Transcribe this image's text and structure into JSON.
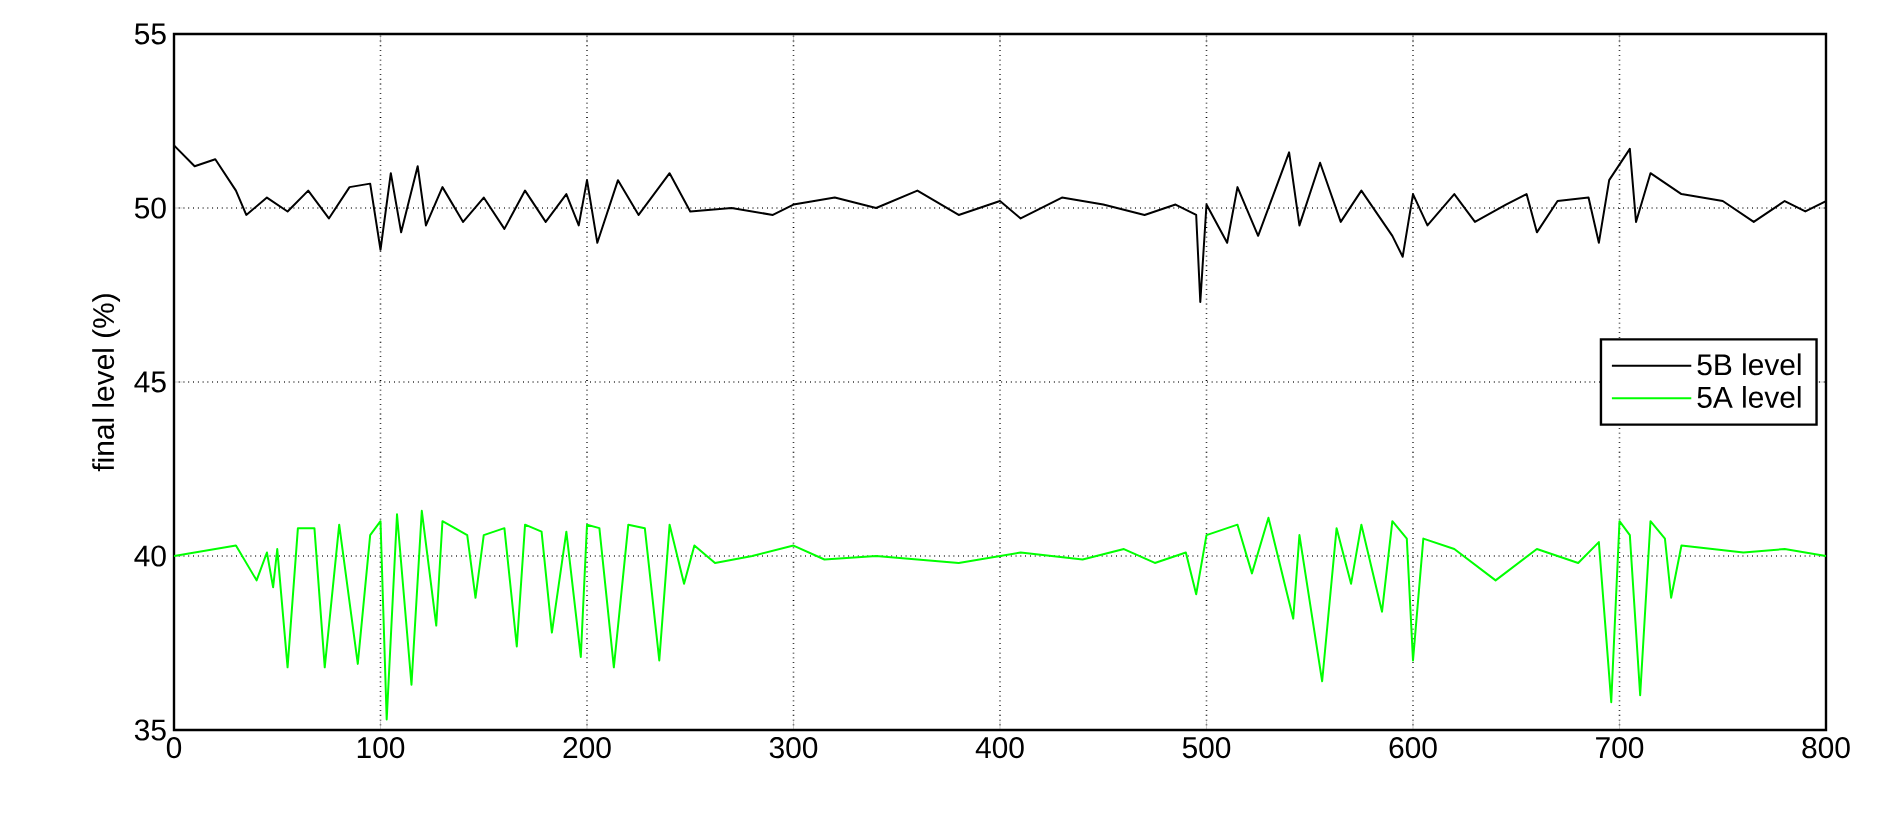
{
  "chart_data": {
    "type": "line",
    "ylabel": "final level (%)",
    "xlim": [
      0,
      800
    ],
    "ylim": [
      35,
      55
    ],
    "xticks": [
      0,
      100,
      200,
      300,
      400,
      500,
      600,
      700,
      800
    ],
    "yticks": [
      35,
      40,
      45,
      50,
      55
    ],
    "grid": true,
    "legend": "right",
    "marker": "none",
    "line_style": "solid",
    "series": [
      {
        "name": "5B level",
        "color": "#000000",
        "x": [
          0,
          10,
          20,
          30,
          35,
          45,
          55,
          65,
          75,
          85,
          95,
          100,
          105,
          110,
          118,
          122,
          130,
          140,
          150,
          160,
          170,
          180,
          190,
          196,
          200,
          205,
          215,
          225,
          240,
          250,
          270,
          290,
          300,
          320,
          340,
          360,
          380,
          400,
          410,
          430,
          450,
          470,
          485,
          495,
          497,
          500,
          510,
          515,
          525,
          540,
          545,
          555,
          565,
          575,
          590,
          595,
          600,
          607,
          620,
          630,
          645,
          655,
          660,
          670,
          685,
          690,
          695,
          705,
          708,
          715,
          730,
          750,
          765,
          780,
          790,
          800
        ],
        "values": [
          51.8,
          51.2,
          51.4,
          50.5,
          49.8,
          50.3,
          49.9,
          50.5,
          49.7,
          50.6,
          50.7,
          48.8,
          51.0,
          49.3,
          51.2,
          49.5,
          50.6,
          49.6,
          50.3,
          49.4,
          50.5,
          49.6,
          50.4,
          49.5,
          50.8,
          49.0,
          50.8,
          49.8,
          51.0,
          49.9,
          50.0,
          49.8,
          50.1,
          50.3,
          50.0,
          50.5,
          49.8,
          50.2,
          49.7,
          50.3,
          50.1,
          49.8,
          50.1,
          49.8,
          47.3,
          50.1,
          49.0,
          50.6,
          49.2,
          51.6,
          49.5,
          51.3,
          49.6,
          50.5,
          49.2,
          48.6,
          50.4,
          49.5,
          50.4,
          49.6,
          50.1,
          50.4,
          49.3,
          50.2,
          50.3,
          49.0,
          50.8,
          51.7,
          49.6,
          51.0,
          50.4,
          50.2,
          49.6,
          50.2,
          49.9,
          50.2
        ]
      },
      {
        "name": "5A level",
        "color": "#00ff00",
        "x": [
          0,
          30,
          40,
          45,
          48,
          50,
          55,
          60,
          68,
          73,
          80,
          89,
          95,
          100,
          103,
          108,
          115,
          120,
          127,
          130,
          142,
          146,
          150,
          160,
          166,
          170,
          178,
          183,
          190,
          197,
          200,
          206,
          213,
          220,
          228,
          235,
          240,
          247,
          252,
          262,
          280,
          300,
          315,
          340,
          380,
          410,
          440,
          460,
          475,
          490,
          495,
          500,
          515,
          522,
          530,
          542,
          545,
          556,
          563,
          570,
          575,
          585,
          590,
          597,
          600,
          605,
          620,
          640,
          660,
          680,
          690,
          696,
          700,
          705,
          710,
          715,
          722,
          725,
          730,
          760,
          780,
          800
        ],
        "values": [
          40.0,
          40.3,
          39.3,
          40.1,
          39.1,
          40.2,
          36.8,
          40.8,
          40.8,
          36.8,
          40.9,
          36.9,
          40.6,
          41.0,
          35.3,
          41.2,
          36.3,
          41.3,
          38.0,
          41.0,
          40.6,
          38.8,
          40.6,
          40.8,
          37.4,
          40.9,
          40.7,
          37.8,
          40.7,
          37.1,
          40.9,
          40.8,
          36.8,
          40.9,
          40.8,
          37.0,
          40.9,
          39.2,
          40.3,
          39.8,
          40.0,
          40.3,
          39.9,
          40.0,
          39.8,
          40.1,
          39.9,
          40.2,
          39.8,
          40.1,
          38.9,
          40.6,
          40.9,
          39.5,
          41.1,
          38.2,
          40.6,
          36.4,
          40.8,
          39.2,
          40.9,
          38.4,
          41.0,
          40.5,
          37.0,
          40.5,
          40.2,
          39.3,
          40.2,
          39.8,
          40.4,
          35.8,
          41.0,
          40.6,
          36.0,
          41.0,
          40.5,
          38.8,
          40.3,
          40.1,
          40.2,
          40.0
        ]
      }
    ]
  }
}
